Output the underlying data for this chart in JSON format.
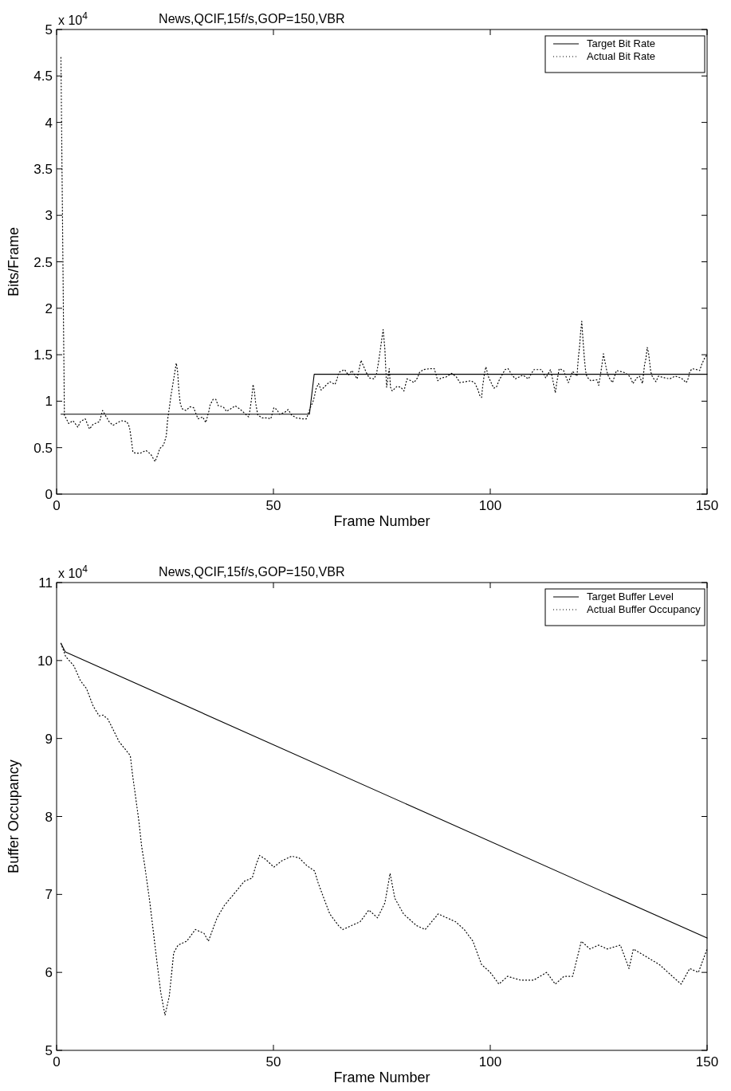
{
  "chart_data": [
    {
      "type": "line",
      "title": "News,QCIF,15f/s,GOP=150,VBR",
      "xlabel": "Frame Number",
      "ylabel": "Bits/Frame",
      "annotations": [
        "x 10$^{4}$"
      ],
      "xlim": [
        0,
        150
      ],
      "xticks": [
        0,
        50,
        100,
        150
      ],
      "ylim": [
        0,
        5
      ],
      "yticks": [
        0,
        0.5,
        1,
        1.5,
        2,
        2.5,
        3,
        3.5,
        4,
        4.5,
        5
      ],
      "legend": "top right",
      "marker": "none",
      "grid": false,
      "series": [
        {
          "name": "Target Bit Rate",
          "color": "#000000",
          "line_style": "solid",
          "x": [
            1,
            58.3,
            59.4,
            150
          ],
          "values": [
            0.86,
            0.86,
            1.29,
            1.29
          ]
        },
        {
          "name": "Actual Bit Rate",
          "color": "#000000",
          "line_style": "dotted",
          "x": [
            1,
            1.8,
            2.8,
            3.8,
            4.9,
            5.5,
            6.6,
            7.6,
            8.4,
            9.9,
            10.6,
            12.1,
            13,
            14.9,
            16.2,
            16.8,
            17.2,
            17.6,
            18.3,
            19.3,
            20.6,
            21.7,
            22.7,
            23.3,
            23.8,
            24.7,
            25.3,
            25.6,
            26,
            26.4,
            26.9,
            27.6,
            27.9,
            28.2,
            28.5,
            28.9,
            29.8,
            30.8,
            31.6,
            32.6,
            33.7,
            34.4,
            35.1,
            35.4,
            36.1,
            36.7,
            37.3,
            38.4,
            39.2,
            40.2,
            41.2,
            42.4,
            44.3,
            44.6,
            45,
            45.3,
            45.6,
            45.9,
            46.4,
            47.4,
            48.5,
            49.4,
            50.1,
            50.8,
            51.4,
            52.6,
            53.4,
            54.2,
            55.3,
            56.7,
            57.6,
            58.5,
            59.1,
            59.5,
            59.8,
            60.4,
            61,
            62.1,
            63,
            64.2,
            64.6,
            65.1,
            66.4,
            67.3,
            68.1,
            69.3,
            70.2,
            71.4,
            72.1,
            73.2,
            73.8,
            74.3,
            74.9,
            75.3,
            75.7,
            76.1,
            76.7,
            77,
            77.4,
            78.5,
            79.4,
            80.1,
            80.8,
            81.7,
            82.4,
            83.2,
            83.7,
            84.6,
            86,
            87.1,
            87.9,
            88.7,
            89.8,
            91.1,
            92.2,
            93,
            94.3,
            95.6,
            96.5,
            97.1,
            97.6,
            98,
            98.3,
            98.7,
            99,
            99.6,
            100.2,
            100.8,
            101.4,
            102,
            102.7,
            103.4,
            104.1,
            104.9,
            105.8,
            107.5,
            108.8,
            109.5,
            110.1,
            111.2,
            111.8,
            112.8,
            113.9,
            114.5,
            115,
            115.4,
            115.9,
            116.9,
            117.4,
            118,
            119,
            120,
            120.3,
            120.6,
            120.8,
            121.1,
            121.4,
            121.7,
            122,
            122.3,
            123.2,
            124.6,
            125,
            125.5,
            125.9,
            126.1,
            126.6,
            126.9,
            127.3,
            128.2,
            129.1,
            130.8,
            131.6,
            132.3,
            132.9,
            133.8,
            134.4,
            135.1,
            135.6,
            135.9,
            136.2,
            136.5,
            137,
            137.4,
            138.2,
            138.8,
            140.3,
            141.4,
            142.6,
            144,
            145.2,
            145.7,
            146,
            146.6,
            147.6,
            148.3,
            148.8,
            149.4,
            150
          ],
          "values": [
            4.7,
            0.85,
            0.76,
            0.79,
            0.72,
            0.78,
            0.81,
            0.7,
            0.75,
            0.78,
            0.9,
            0.78,
            0.74,
            0.79,
            0.78,
            0.72,
            0.6,
            0.45,
            0.44,
            0.44,
            0.47,
            0.43,
            0.35,
            0.42,
            0.49,
            0.53,
            0.63,
            0.8,
            0.93,
            1.07,
            1.21,
            1.41,
            1.32,
            1.11,
            0.98,
            0.92,
            0.9,
            0.94,
            0.93,
            0.81,
            0.83,
            0.77,
            0.89,
            0.96,
            1.02,
            1.02,
            0.95,
            0.94,
            0.89,
            0.92,
            0.95,
            0.91,
            0.83,
            0.91,
            1.04,
            1.18,
            1.11,
            0.98,
            0.85,
            0.82,
            0.82,
            0.81,
            0.93,
            0.91,
            0.86,
            0.88,
            0.91,
            0.85,
            0.82,
            0.81,
            0.81,
            0.93,
            0.99,
            1.06,
            1.13,
            1.19,
            1.12,
            1.17,
            1.21,
            1.18,
            1.23,
            1.31,
            1.34,
            1.28,
            1.33,
            1.24,
            1.44,
            1.31,
            1.25,
            1.24,
            1.3,
            1.44,
            1.64,
            1.77,
            1.56,
            1.15,
            1.35,
            1.15,
            1.11,
            1.16,
            1.15,
            1.11,
            1.24,
            1.22,
            1.2,
            1.25,
            1.31,
            1.34,
            1.35,
            1.35,
            1.22,
            1.25,
            1.26,
            1.3,
            1.26,
            1.2,
            1.21,
            1.22,
            1.19,
            1.13,
            1.06,
            1.04,
            1.18,
            1.31,
            1.37,
            1.26,
            1.2,
            1.14,
            1.15,
            1.22,
            1.28,
            1.34,
            1.35,
            1.29,
            1.24,
            1.28,
            1.24,
            1.3,
            1.34,
            1.34,
            1.34,
            1.25,
            1.34,
            1.21,
            1.09,
            1.22,
            1.35,
            1.33,
            1.27,
            1.2,
            1.32,
            1.27,
            1.46,
            1.59,
            1.72,
            1.86,
            1.65,
            1.46,
            1.32,
            1.26,
            1.22,
            1.23,
            1.17,
            1.31,
            1.44,
            1.51,
            1.39,
            1.32,
            1.26,
            1.2,
            1.33,
            1.31,
            1.29,
            1.26,
            1.19,
            1.25,
            1.27,
            1.19,
            1.4,
            1.46,
            1.58,
            1.52,
            1.32,
            1.26,
            1.21,
            1.27,
            1.25,
            1.24,
            1.27,
            1.25,
            1.2,
            1.25,
            1.32,
            1.35,
            1.34,
            1.33,
            1.4,
            1.46,
            1.5
          ]
        }
      ]
    },
    {
      "type": "line",
      "title": "News,QCIF,15f/s,GOP=150,VBR",
      "xlabel": "Frame Number",
      "ylabel": "Buffer Occupancy",
      "annotations": [
        "x 10$^{4}$"
      ],
      "xlim": [
        0,
        150
      ],
      "xticks": [
        0,
        50,
        100,
        150
      ],
      "ylim": [
        5,
        11
      ],
      "yticks": [
        5,
        6,
        7,
        8,
        9,
        10,
        11
      ],
      "legend": "top right",
      "marker": "none",
      "grid": false,
      "series": [
        {
          "name": "Target Buffer Level",
          "color": "#000000",
          "line_style": "solid",
          "x": [
            1,
            2,
            150
          ],
          "values": [
            10.22,
            10.11,
            6.44
          ]
        },
        {
          "name": "Actual Buffer Occupancy",
          "color": "#000000",
          "line_style": "dotted",
          "x": [
            1,
            2.1,
            4,
            5.5,
            6.9,
            8.4,
            9.8,
            10.7,
            11.8,
            12.9,
            14.4,
            16,
            17,
            17.5,
            18.1,
            19,
            19.6,
            20.3,
            20.9,
            21.5,
            23,
            24,
            25,
            26,
            27,
            28,
            30,
            32,
            34,
            35,
            37,
            38.7,
            40.8,
            43.3,
            45.1,
            46,
            46.8,
            48.2,
            50.1,
            51.9,
            54.2,
            55.9,
            57.7,
            59.5,
            60.3,
            61.7,
            63,
            65,
            66,
            68,
            70,
            72,
            74,
            75.7,
            76.9,
            78,
            80,
            83,
            85,
            88,
            90,
            92,
            94,
            96,
            98,
            100,
            102,
            104,
            107,
            110,
            113,
            115,
            117,
            119,
            121,
            123,
            125,
            127,
            130,
            132,
            133,
            136,
            139,
            141,
            144,
            146,
            148,
            150
          ],
          "values": [
            10.22,
            10.05,
            9.93,
            9.74,
            9.64,
            9.42,
            9.29,
            9.3,
            9.25,
            9.13,
            8.96,
            8.85,
            8.78,
            8.54,
            8.3,
            7.93,
            7.62,
            7.38,
            7.14,
            6.9,
            6.2,
            5.75,
            5.45,
            5.7,
            6.25,
            6.35,
            6.4,
            6.55,
            6.5,
            6.4,
            6.7,
            6.86,
            7,
            7.17,
            7.21,
            7.38,
            7.5,
            7.45,
            7.35,
            7.43,
            7.49,
            7.47,
            7.37,
            7.3,
            7.15,
            6.94,
            6.75,
            6.6,
            6.55,
            6.6,
            6.65,
            6.8,
            6.7,
            6.89,
            7.27,
            6.95,
            6.75,
            6.6,
            6.55,
            6.75,
            6.7,
            6.65,
            6.55,
            6.4,
            6.1,
            6,
            5.85,
            5.95,
            5.9,
            5.9,
            6,
            5.85,
            5.95,
            5.95,
            6.4,
            6.3,
            6.35,
            6.3,
            6.35,
            6.05,
            6.3,
            6.2,
            6.1,
            6,
            5.85,
            6.05,
            6,
            6.3
          ]
        }
      ]
    }
  ]
}
